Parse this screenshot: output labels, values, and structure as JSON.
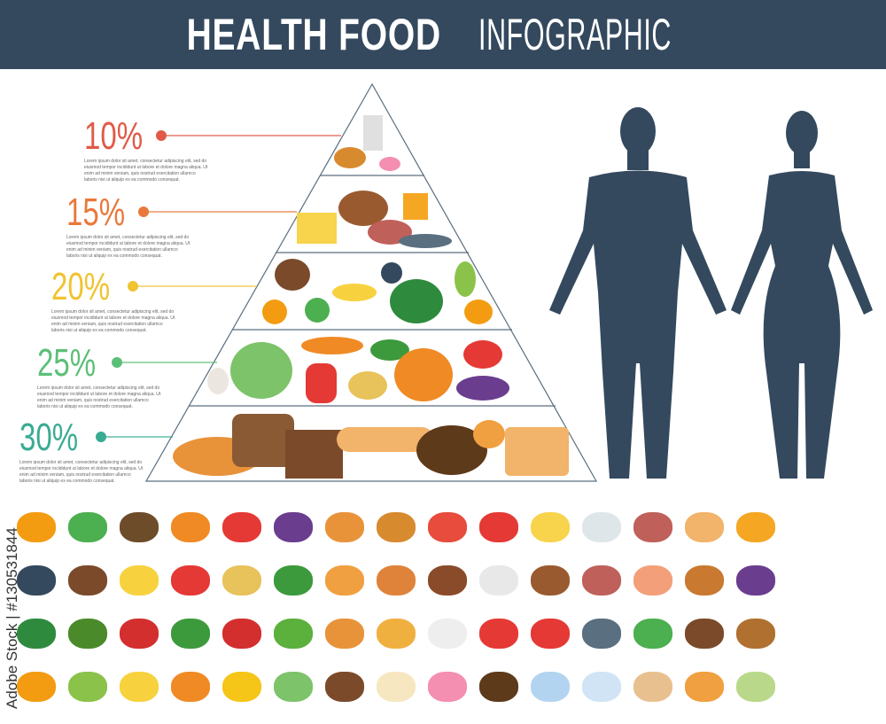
{
  "header": {
    "title_bold": "HEALTH FOOD",
    "title_light": "INFOGRAPHIC",
    "bg": "#34495e"
  },
  "levels": [
    {
      "percent": "10%",
      "color": "#e05a47",
      "text": "Lorem ipsum dolor sit amet, consectetur adipiscing elit, sed do eiusmod tempor incididunt ut labore et dolore magna aliqua. Ut enim ad minim veniam, quis nostrud exercitation ullamco laboris nisi ut aliquip ex ea commodo consequat."
    },
    {
      "percent": "15%",
      "color": "#e9793b",
      "text": "Lorem ipsum dolor sit amet, consectetur adipiscing elit, sed do eiusmod tempor incididunt ut labore et dolore magna aliqua. Ut enim ad minim veniam, quis nostrud exercitation ullamco laboris nisi ut aliquip ex ea commodo consequat."
    },
    {
      "percent": "20%",
      "color": "#f0c330",
      "text": "Lorem ipsum dolor sit amet, consectetur adipiscing elit, sed do eiusmod tempor incididunt ut labore et dolore magna aliqua. Ut enim ad minim veniam, quis nostrud exercitation ullamco laboris nisi ut aliquip ex ea commodo consequat."
    },
    {
      "percent": "25%",
      "color": "#5cbf78",
      "text": "Lorem ipsum dolor sit amet, consectetur adipiscing elit, sed do eiusmod tempor incididunt ut labore et dolore magna aliqua. Ut enim ad minim veniam, quis nostrud exercitation ullamco laboris nisi ut aliquip ex ea commodo consequat."
    },
    {
      "percent": "30%",
      "color": "#3aab93",
      "text": "Lorem ipsum dolor sit amet, consectetur adipiscing elit, sed do eiusmod tempor incididunt ut labore et dolore magna aliqua. Ut enim ad minim veniam, quis nostrud exercitation ullamco laboris nisi ut aliquip ex ea commodo consequat."
    }
  ],
  "silhouette_color": "#34495e",
  "watermark": "Adobe Stock | #130531844",
  "foods": [
    {
      "icon": "orange-icon",
      "color": "#f39c12"
    },
    {
      "icon": "apple-icon",
      "color": "#4caf50"
    },
    {
      "icon": "kiwi-icon",
      "color": "#6d4c2a"
    },
    {
      "icon": "carrot-icon",
      "color": "#f08a24"
    },
    {
      "icon": "tomato-icon",
      "color": "#e53935"
    },
    {
      "icon": "eggplant-icon",
      "color": "#6a3d8f"
    },
    {
      "icon": "bread-icon",
      "color": "#e8933a"
    },
    {
      "icon": "burger-icon",
      "color": "#d88a2e"
    },
    {
      "icon": "popcorn-icon",
      "color": "#e74c3c"
    },
    {
      "icon": "fries-icon",
      "color": "#e53935"
    },
    {
      "icon": "cheese-icon",
      "color": "#f7d44c"
    },
    {
      "icon": "milk-icon",
      "color": "#dfe6ea"
    },
    {
      "icon": "ham-icon",
      "color": "#c0605a"
    },
    {
      "icon": "sliced-bread-icon",
      "color": "#f2b36a"
    },
    {
      "icon": "honey-icon",
      "color": "#f5a623"
    },
    {
      "icon": "",
      "color": "#fff"
    },
    {
      "icon": "",
      "color": "#fff"
    },
    {
      "icon": "grapes-icon",
      "color": "#34495e"
    },
    {
      "icon": "coconut-icon",
      "color": "#7a4a2a"
    },
    {
      "icon": "banana-icon",
      "color": "#f7d23e"
    },
    {
      "icon": "pepper-icon",
      "color": "#e53935"
    },
    {
      "icon": "potato-icon",
      "color": "#e8c25a"
    },
    {
      "icon": "cucumber-icon",
      "color": "#3c9a3c"
    },
    {
      "icon": "croissant-icon",
      "color": "#f0a040"
    },
    {
      "icon": "hotdog-icon",
      "color": "#e0833a"
    },
    {
      "icon": "chicken-leg-icon",
      "color": "#8a4b2a"
    },
    {
      "icon": "soda-cup-icon",
      "color": "#e8e8e8"
    },
    {
      "icon": "roast-chicken-icon",
      "color": "#9a5a30"
    },
    {
      "icon": "sausage-icon",
      "color": "#c0605a"
    },
    {
      "icon": "salmon-icon",
      "color": "#f3a07a"
    },
    {
      "icon": "pretzel-icon",
      "color": "#c97a30"
    },
    {
      "icon": "plum-icon",
      "color": "#6a3d8f"
    },
    {
      "icon": "",
      "color": "#fff"
    },
    {
      "icon": "",
      "color": "#fff"
    },
    {
      "icon": "watermelon-icon",
      "color": "#2e8b3e"
    },
    {
      "icon": "avocado-icon",
      "color": "#4a8a2a"
    },
    {
      "icon": "cherry-icon",
      "color": "#d32f2f"
    },
    {
      "icon": "broccoli-icon",
      "color": "#3c9a3c"
    },
    {
      "icon": "chili-icon",
      "color": "#d32f2f"
    },
    {
      "icon": "peas-icon",
      "color": "#5cb03c"
    },
    {
      "icon": "challah-icon",
      "color": "#e8933a"
    },
    {
      "icon": "pizza-icon",
      "color": "#f0b040"
    },
    {
      "icon": "noodle-box-icon",
      "color": "#eeeeee"
    },
    {
      "icon": "ketchup-mustard-icon",
      "color": "#e53935"
    },
    {
      "icon": "crab-icon",
      "color": "#e53935"
    },
    {
      "icon": "fish-icon",
      "color": "#5a6f80"
    },
    {
      "icon": "canned-food-icon",
      "color": "#4caf50"
    },
    {
      "icon": "rye-bread-icon",
      "color": "#7a4a2a"
    },
    {
      "icon": "walnut-icon",
      "color": "#b07030"
    },
    {
      "icon": "",
      "color": "#fff"
    },
    {
      "icon": "",
      "color": "#fff"
    },
    {
      "icon": "papaya-icon",
      "color": "#f39c12"
    },
    {
      "icon": "pear-icon",
      "color": "#8bc34a"
    },
    {
      "icon": "lemon-icon",
      "color": "#f7d23e"
    },
    {
      "icon": "pumpkin-icon",
      "color": "#f08a24"
    },
    {
      "icon": "corn-icon",
      "color": "#f5c518"
    },
    {
      "icon": "cabbage-icon",
      "color": "#7cc36a"
    },
    {
      "icon": "round-bread-icon",
      "color": "#7a4a2a"
    },
    {
      "icon": "ice-cream-icon",
      "color": "#f7e7c0"
    },
    {
      "icon": "donut-icon",
      "color": "#f48fb1"
    },
    {
      "icon": "coffee-icon",
      "color": "#5d3a1a"
    },
    {
      "icon": "water-bottle-icon",
      "color": "#b3d4f0"
    },
    {
      "icon": "yogurt-icon",
      "color": "#d0e4f5"
    },
    {
      "icon": "eggs-icon",
      "color": "#e8c090"
    },
    {
      "icon": "buns-icon",
      "color": "#f0a040"
    },
    {
      "icon": "green-tea-icon",
      "color": "#b9d88a"
    },
    {
      "icon": "",
      "color": "#fff"
    },
    {
      "icon": "",
      "color": "#fff"
    }
  ]
}
